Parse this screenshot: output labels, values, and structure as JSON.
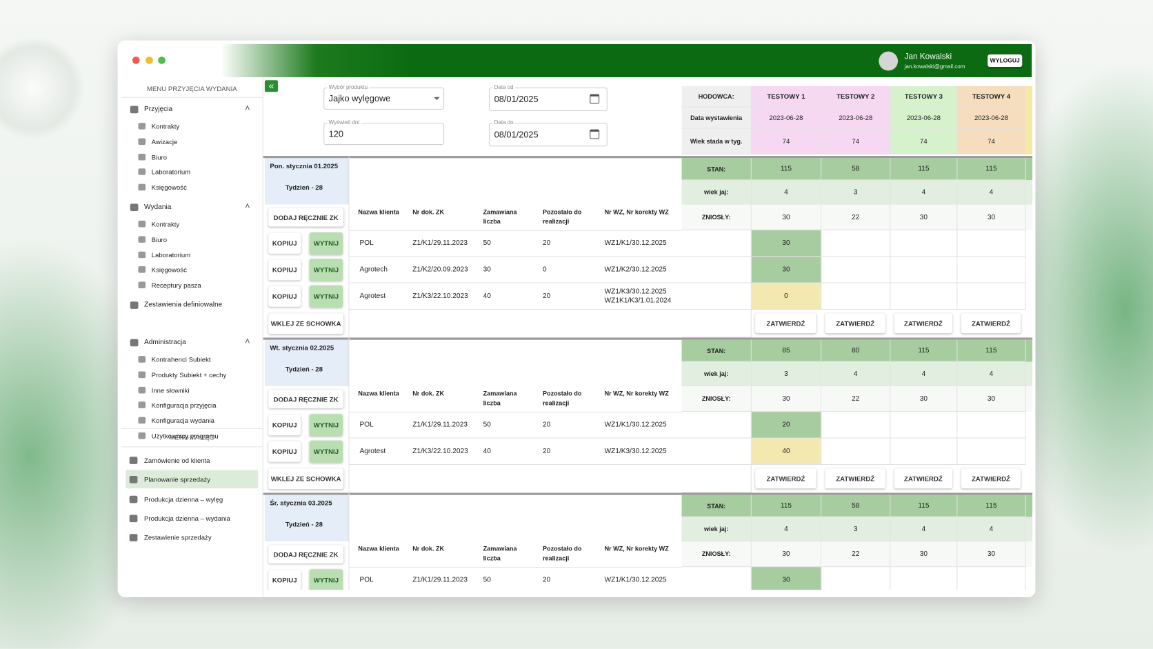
{
  "header": {
    "user_name": "Jan Kowalski",
    "user_email": "jan.kowalski@gmail.com",
    "logout": "WYLOGUJ"
  },
  "sidebar": {
    "title": "MENU PRZYJĘCIA WYDANIA",
    "groups": [
      {
        "label": "Przyjęcia",
        "items": [
          "Kontrakty",
          "Awizacje",
          "Biuro",
          "Laboratorium",
          "Księgowość"
        ]
      },
      {
        "label": "Wydania",
        "items": [
          "Kontrakty",
          "Biuro",
          "Laboratorium",
          "Księgowość",
          "Receptury pasza"
        ]
      },
      {
        "label": "Zestawienia definiowalne",
        "items": []
      },
      {
        "label": "Administracja",
        "items": [
          "Kontrahenci Subiekt",
          "Produkty Subiekt + cechy",
          "Inne słowniki",
          "Konfiguracja przyjęcia",
          "Konfiguracja wydania",
          "Użytkownicy programu"
        ]
      }
    ],
    "menu2_title": "MENU WYLĘG",
    "menu2_items": [
      "Zamówienie od klienta",
      "Planowanie sprzedaży",
      "Produkcja dzienna – wylęg",
      "Produkcja dzienna – wydania",
      "Zestawienie sprzedaży"
    ],
    "menu2_active": 1
  },
  "filters": {
    "product_label": "Wybór produktu",
    "product": "Jajko wylęgowe",
    "days_label": "Wyświetl dni",
    "days": "120",
    "date_from_label": "Data od",
    "date_from": "08/01/2025",
    "date_to_label": "Data do",
    "date_to": "08/01/2025"
  },
  "farms": {
    "labels": [
      "HODOWCA:",
      "Data wystawienia",
      "Wiek stada w tyg."
    ],
    "columns": [
      {
        "name": "TESTOWY 1",
        "date": "2023-06-28",
        "age": "74",
        "color": "#f6d8f3"
      },
      {
        "name": "TESTOWY 2",
        "date": "2023-06-28",
        "age": "74",
        "color": "#f6d8f3"
      },
      {
        "name": "TESTOWY 3",
        "date": "2023-06-28",
        "age": "74",
        "color": "#d6f2cd"
      },
      {
        "name": "TESTOWY 4",
        "date": "2023-06-28",
        "age": "74",
        "color": "#f5ddbd"
      }
    ]
  },
  "labels": {
    "stan": "STAN:",
    "wiek": "wiek jaj:",
    "zniosly": "ZNIOSŁY:",
    "add": "DODAJ RĘCZNIE ZK",
    "copy": "KOPIUJ",
    "cut": "WYTNIJ",
    "paste": "WKLEJ ZE SCHOWKA",
    "confirm": "ZATWIERDŹ",
    "columns": [
      "Nazwa klienta",
      "Nr dok. ZK",
      "Zamawiana liczba",
      "Pozostało do realizacji",
      "Nr WZ, Nr korekty WZ"
    ]
  },
  "days": [
    {
      "title": "Pon. stycznia 01.2025",
      "week": "Tydzień - 28",
      "stan": [
        "115",
        "58",
        "115",
        "115"
      ],
      "wiek": [
        "4",
        "3",
        "4",
        "4"
      ],
      "zniosly": [
        "30",
        "22",
        "30",
        "30"
      ],
      "rows": [
        {
          "client": "POL",
          "doc": "Z1/K1/29.11.2023",
          "ordered": "50",
          "remaining": "20",
          "wz": [
            "WZ1/K1/30.12.2025"
          ],
          "alloc": "30",
          "alloc_color": "#a6cc9f"
        },
        {
          "client": "Agrotech",
          "doc": "Z1/K2/20.09.2023",
          "ordered": "30",
          "remaining": "0",
          "wz": [
            "WZ1/K2/30.12.2025"
          ],
          "alloc": "30",
          "alloc_color": "#a6cc9f"
        },
        {
          "client": "Agrotest",
          "doc": "Z1/K3/22.10.2023",
          "ordered": "40",
          "remaining": "20",
          "wz": [
            "WZ1/K3/30.12.2025",
            "WZ1K1/K3/1.01.2024"
          ],
          "alloc": "0",
          "alloc_color": "#f3e8b0"
        }
      ]
    },
    {
      "title": "Wt. stycznia 02.2025",
      "week": "Tydzień - 28",
      "stan": [
        "85",
        "80",
        "115",
        "115"
      ],
      "wiek": [
        "3",
        "4",
        "4",
        "4"
      ],
      "zniosly": [
        "30",
        "22",
        "30",
        "30"
      ],
      "rows": [
        {
          "client": "POL",
          "doc": "Z1/K1/29.11.2023",
          "ordered": "50",
          "remaining": "20",
          "wz": [
            "WZ1/K1/30.12.2025"
          ],
          "alloc": "20",
          "alloc_color": "#a6cc9f"
        },
        {
          "client": "Agrotest",
          "doc": "Z1/K3/22.10.2023",
          "ordered": "40",
          "remaining": "20",
          "wz": [
            "WZ1/K3/30.12.2025"
          ],
          "alloc": "40",
          "alloc_color": "#f3e8b0"
        }
      ]
    },
    {
      "title": "Śr. stycznia 03.2025",
      "week": "Tydzień - 28",
      "stan": [
        "115",
        "58",
        "115",
        "115"
      ],
      "wiek": [
        "4",
        "3",
        "4",
        "4"
      ],
      "zniosly": [
        "30",
        "22",
        "30",
        "30"
      ],
      "rows": [
        {
          "client": "POL",
          "doc": "Z1/K1/29.11.2023",
          "ordered": "50",
          "remaining": "20",
          "wz": [
            "WZ1/K1/30.12.2025"
          ],
          "alloc": "30",
          "alloc_color": "#a6cc9f"
        }
      ]
    }
  ]
}
